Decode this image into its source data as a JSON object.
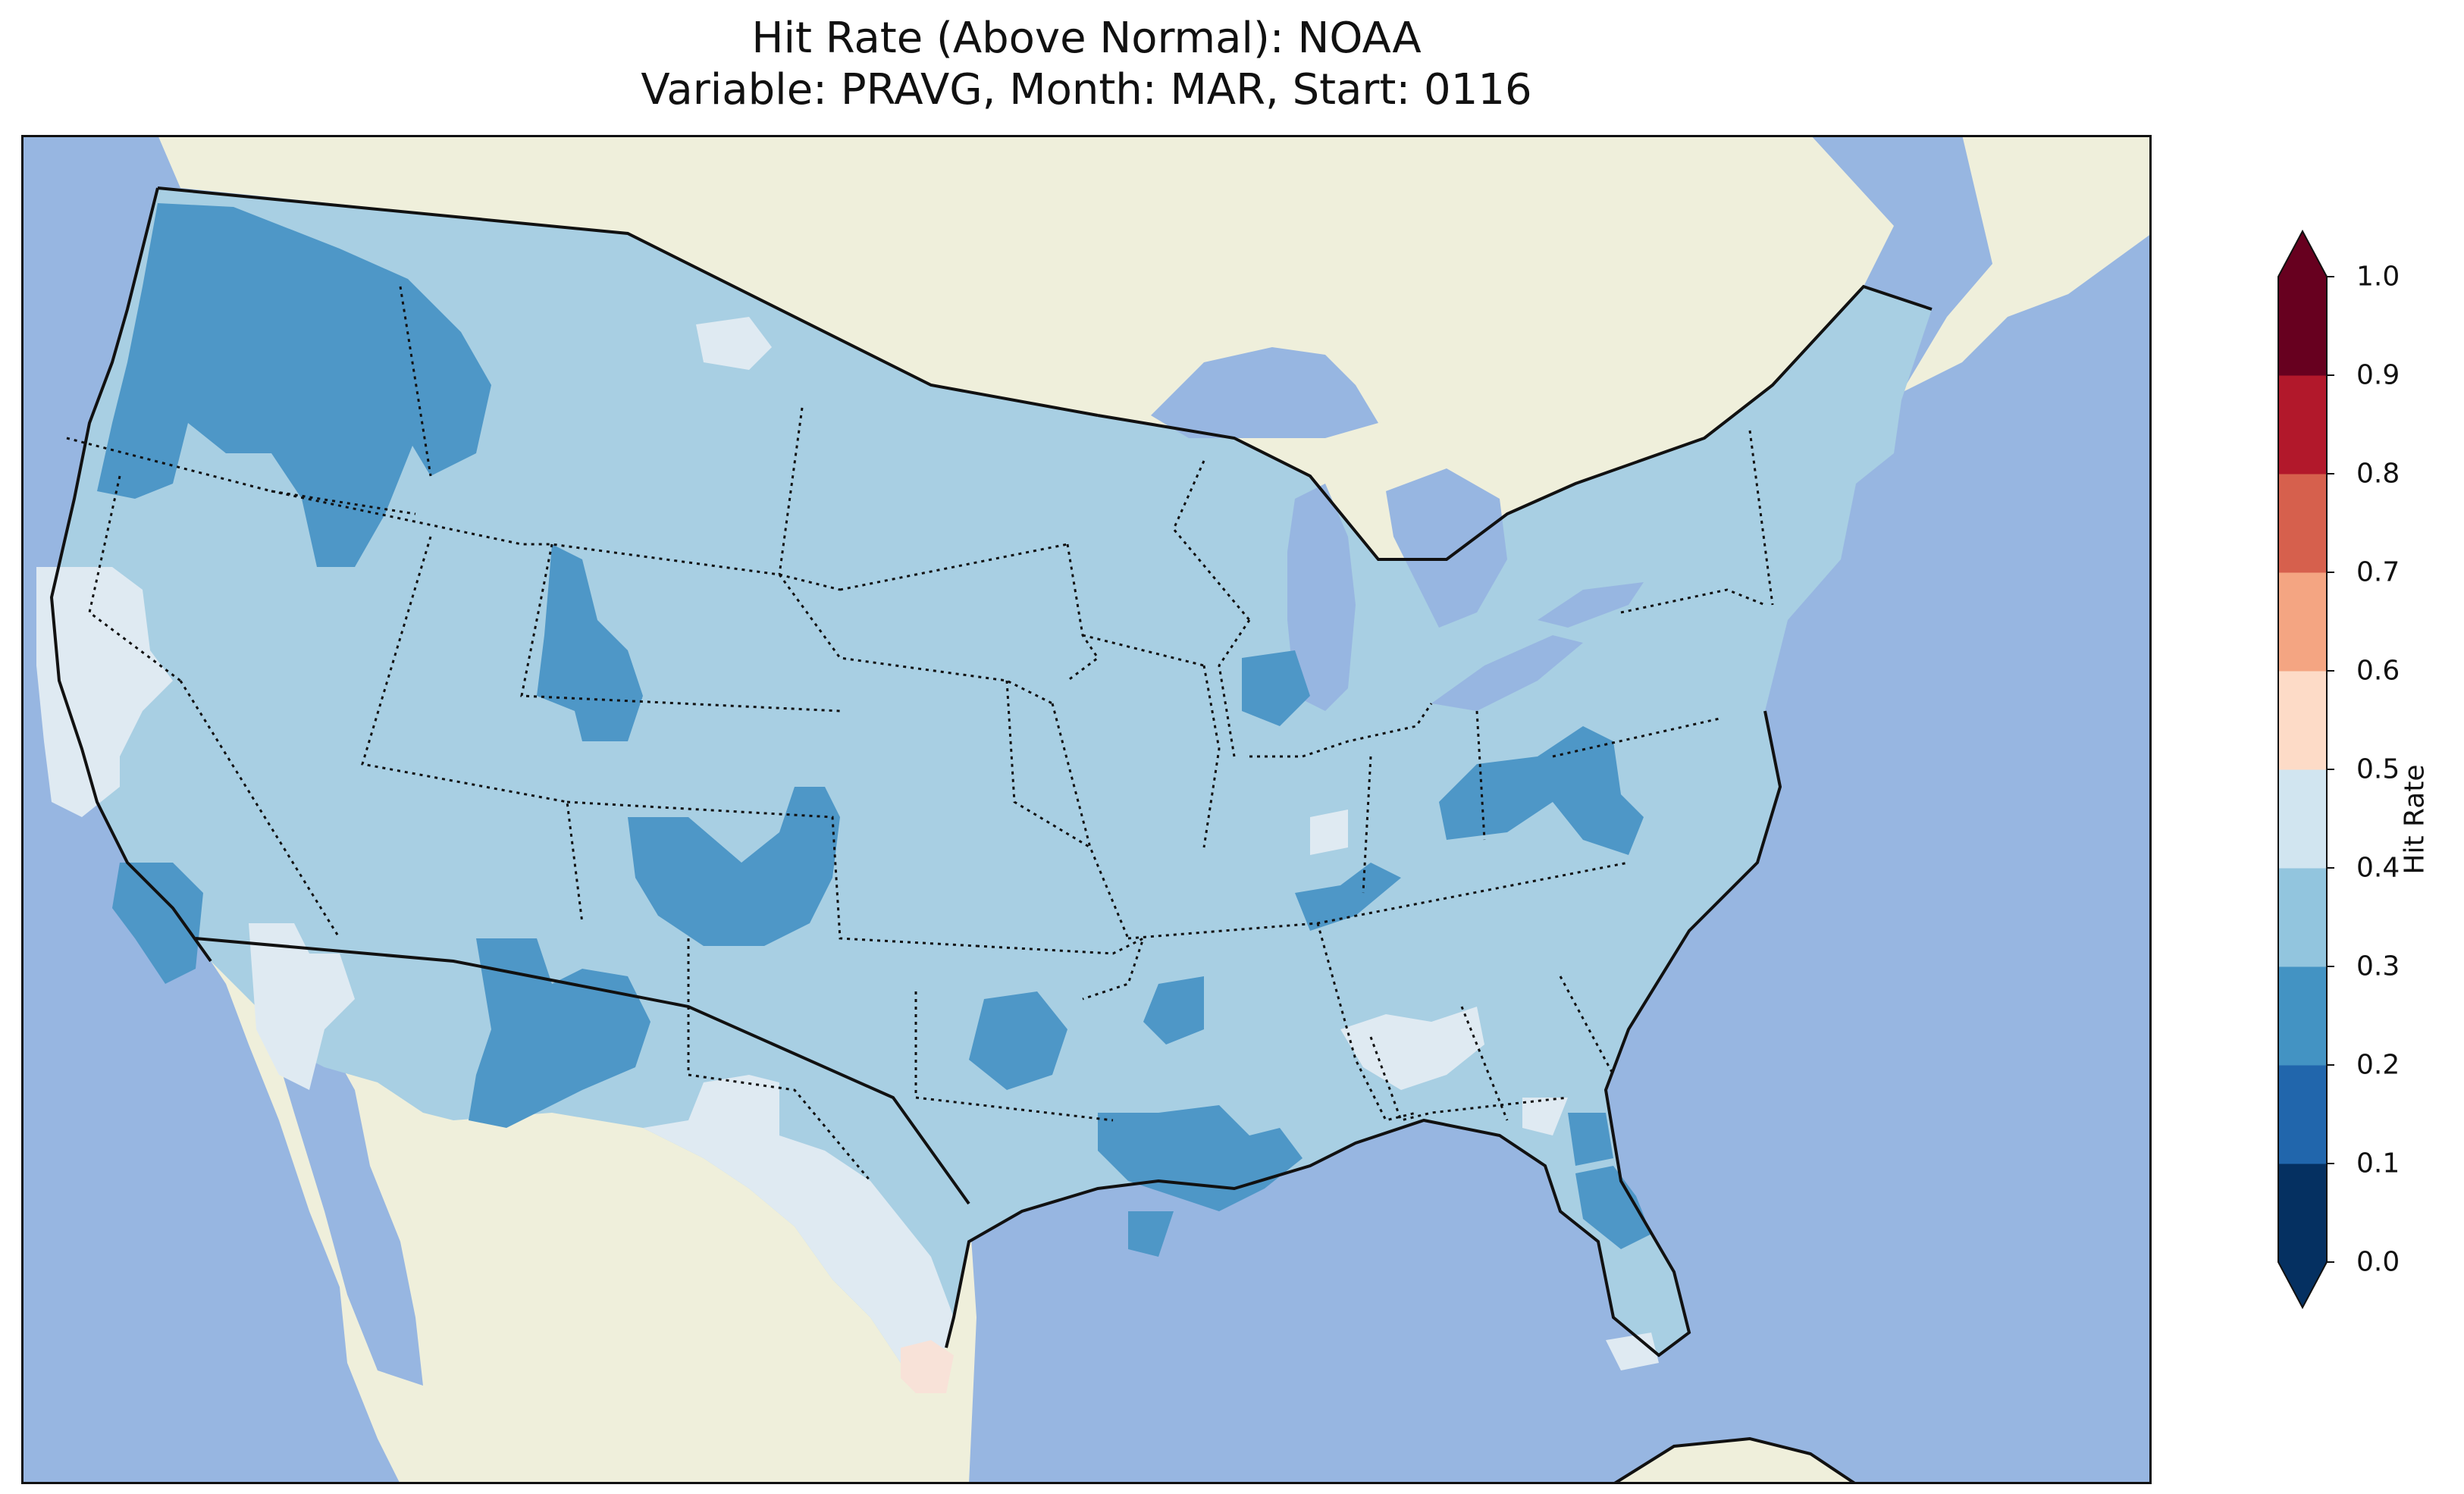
{
  "title": {
    "line1": "Hit Rate (Above Normal): NOAA",
    "line2": "Variable: PRAVG, Month: MAR, Start: 0116"
  },
  "colorbar": {
    "label": "Hit Rate",
    "ticks": [
      "0.0",
      "0.1",
      "0.2",
      "0.3",
      "0.4",
      "0.5",
      "0.6",
      "0.7",
      "0.8",
      "0.9",
      "1.0"
    ],
    "bins": [
      {
        "range": [
          0.0,
          0.1
        ],
        "color": "#053061"
      },
      {
        "range": [
          0.1,
          0.2
        ],
        "color": "#2166ac"
      },
      {
        "range": [
          0.2,
          0.3
        ],
        "color": "#4393c3"
      },
      {
        "range": [
          0.3,
          0.4
        ],
        "color": "#92c5de"
      },
      {
        "range": [
          0.4,
          0.5
        ],
        "color": "#d1e5f0"
      },
      {
        "range": [
          0.5,
          0.6
        ],
        "color": "#fddbc7"
      },
      {
        "range": [
          0.6,
          0.7
        ],
        "color": "#f4a582"
      },
      {
        "range": [
          0.7,
          0.8
        ],
        "color": "#d6604d"
      },
      {
        "range": [
          0.8,
          0.9
        ],
        "color": "#b2182b"
      },
      {
        "range": [
          0.9,
          1.0
        ],
        "color": "#67001f"
      }
    ],
    "extend": "both"
  },
  "map_colors": {
    "ocean": "#97b6e1",
    "land": "#efefdb",
    "lakes": "#97b6e1",
    "hit_0_2_to_0_3": "#4e97c7",
    "hit_0_3_to_0_4": "#a8cfe3",
    "hit_0_4_to_0_5": "#dfeaf2",
    "hit_0_5_to_0_6": "#f8e2d8"
  },
  "map_regions": {
    "area": "Contiguous United States",
    "dominant_bin": "0.3-0.4",
    "lower_hit_areas": [
      "Washington",
      "Idaho panhandle",
      "Oregon",
      "Wyoming",
      "Colorado",
      "Utah/Arizona",
      "Oklahoma",
      "Arkansas",
      "Mississippi",
      "Ohio/West Virginia",
      "North Florida",
      "Iowa/Illinois",
      "Southern California"
    ],
    "higher_hit_areas": [
      "Northern California coast",
      "Texas",
      "Southern Nevada",
      "Tennessee/Alabama",
      "Georgia",
      "South Florida"
    ],
    "highest_hit_area": "South Texas (0.5-0.6)"
  }
}
